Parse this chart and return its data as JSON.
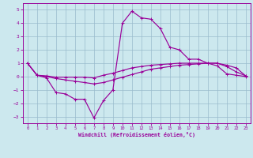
{
  "xlabel": "Windchill (Refroidissement éolien,°C)",
  "bg_color": "#cce8ee",
  "line_color": "#990099",
  "grid_color": "#99bbcc",
  "xlim": [
    -0.5,
    23.5
  ],
  "ylim": [
    -3.5,
    5.5
  ],
  "xticks": [
    0,
    1,
    2,
    3,
    4,
    5,
    6,
    7,
    8,
    9,
    10,
    11,
    12,
    13,
    14,
    15,
    16,
    17,
    18,
    19,
    20,
    21,
    22,
    23
  ],
  "yticks": [
    -3,
    -2,
    -1,
    0,
    1,
    2,
    3,
    4,
    5
  ],
  "s1_x": [
    0,
    1,
    2,
    3,
    4,
    5,
    6,
    7,
    8,
    9,
    10,
    11,
    12,
    13,
    14,
    15,
    16,
    17,
    18,
    19,
    20,
    21,
    22,
    23
  ],
  "s1_y": [
    1.0,
    0.1,
    0.05,
    -0.05,
    -0.05,
    -0.05,
    -0.05,
    -0.1,
    0.1,
    0.25,
    0.45,
    0.65,
    0.75,
    0.85,
    0.9,
    0.95,
    1.0,
    1.0,
    1.0,
    1.0,
    1.0,
    0.85,
    0.65,
    0.05
  ],
  "s2_x": [
    0,
    1,
    2,
    3,
    4,
    5,
    6,
    7,
    8,
    9,
    10,
    11,
    12,
    13,
    14,
    15,
    16,
    17,
    18,
    19,
    20,
    21,
    22,
    23
  ],
  "s2_y": [
    1.0,
    0.1,
    0.0,
    -0.15,
    -0.25,
    -0.35,
    -0.45,
    -0.55,
    -0.45,
    -0.25,
    -0.05,
    0.15,
    0.35,
    0.55,
    0.65,
    0.75,
    0.85,
    0.9,
    0.95,
    1.0,
    1.0,
    0.75,
    0.35,
    0.05
  ],
  "s3_x": [
    0,
    1,
    2,
    3,
    4,
    5,
    6,
    7,
    8,
    9,
    10,
    11,
    12,
    13,
    14,
    15,
    16,
    17,
    18,
    19,
    20,
    21,
    22,
    23
  ],
  "s3_y": [
    1.0,
    0.1,
    -0.1,
    -1.2,
    -1.3,
    -1.7,
    -1.7,
    -3.1,
    -1.8,
    -1.0,
    4.0,
    4.9,
    4.4,
    4.3,
    3.6,
    2.2,
    2.0,
    1.3,
    1.3,
    1.0,
    0.8,
    0.2,
    0.1,
    0.0
  ]
}
